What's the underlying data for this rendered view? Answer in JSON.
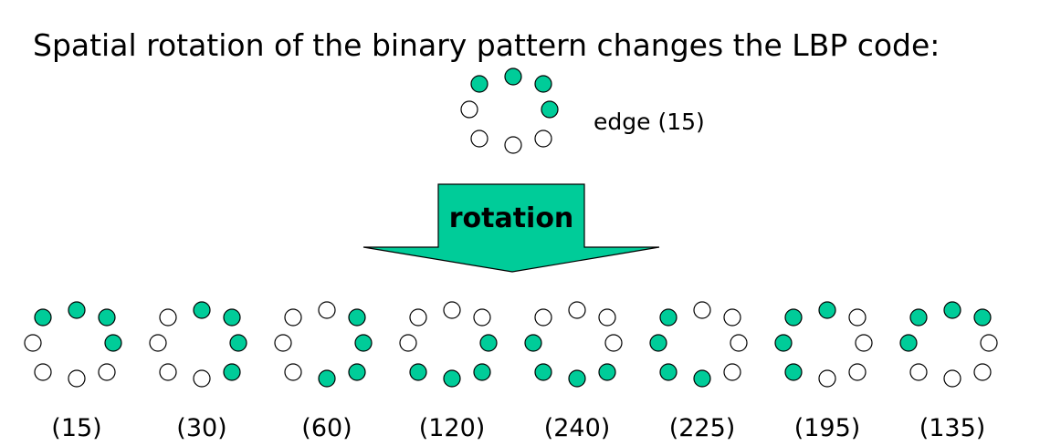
{
  "title": "Spatial rotation of the binary pattern changes the LBP code:",
  "colors": {
    "on": "#00cc99",
    "off": "#ffffff",
    "stroke": "#000000"
  },
  "source_pattern": {
    "label": "edge (15)",
    "bits": [
      1,
      1,
      1,
      1,
      0,
      0,
      0,
      0
    ]
  },
  "arrow_label": "rotation",
  "rotations": [
    {
      "label": "(15)",
      "bits": [
        1,
        1,
        1,
        1,
        0,
        0,
        0,
        0
      ]
    },
    {
      "label": "(30)",
      "bits": [
        0,
        1,
        1,
        1,
        1,
        0,
        0,
        0
      ]
    },
    {
      "label": "(60)",
      "bits": [
        0,
        0,
        1,
        1,
        1,
        1,
        0,
        0
      ]
    },
    {
      "label": "(120)",
      "bits": [
        0,
        0,
        0,
        1,
        1,
        1,
        1,
        0
      ]
    },
    {
      "label": "(240)",
      "bits": [
        0,
        0,
        0,
        0,
        1,
        1,
        1,
        1
      ]
    },
    {
      "label": "(225)",
      "bits": [
        1,
        0,
        0,
        0,
        0,
        1,
        1,
        1
      ]
    },
    {
      "label": "(195)",
      "bits": [
        1,
        1,
        0,
        0,
        0,
        0,
        1,
        1
      ]
    },
    {
      "label": "(135)",
      "bits": [
        1,
        1,
        1,
        0,
        0,
        0,
        0,
        1
      ]
    }
  ]
}
